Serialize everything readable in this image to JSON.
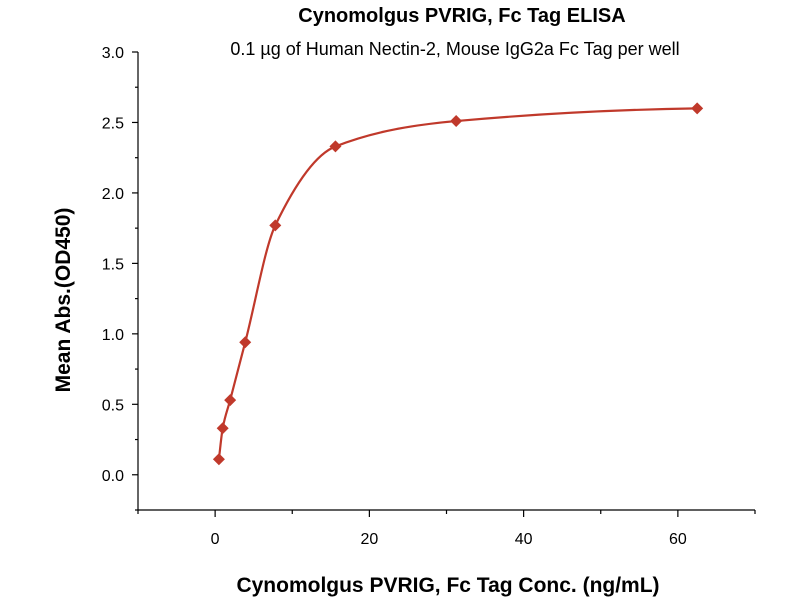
{
  "chart_data": {
    "type": "scatter",
    "title": "Cynomolgus PVRIG, Fc Tag ELISA",
    "subtitle": "0.1 µg of Human Nectin-2, Mouse IgG2a Fc Tag per well",
    "xlabel": "Cynomolgus PVRIG, Fc Tag Conc. (ng/mL)",
    "ylabel": "Mean Abs.(OD450)",
    "xlim": [
      -10,
      70
    ],
    "ylim": [
      -0.25,
      3.0
    ],
    "x_ticks": [
      0,
      20,
      40,
      60
    ],
    "x_tick_labels": [
      "0",
      "20",
      "40",
      "60"
    ],
    "y_ticks": [
      0.0,
      0.5,
      1.0,
      1.5,
      2.0,
      2.5,
      3.0
    ],
    "y_tick_labels": [
      "0.0",
      "0.5",
      "1.0",
      "1.5",
      "2.0",
      "2.5",
      "3.0"
    ],
    "grid": false,
    "series": [
      {
        "marker": "diamond",
        "fit": "sigmoidal",
        "x": [
          0.49,
          0.98,
          1.95,
          3.9,
          7.8,
          15.6,
          31.25,
          62.5
        ],
        "y": [
          0.11,
          0.33,
          0.53,
          0.94,
          1.77,
          2.33,
          2.51,
          2.6
        ]
      }
    ],
    "colors": {
      "series": "#c0392b",
      "axis": "#000000"
    }
  }
}
